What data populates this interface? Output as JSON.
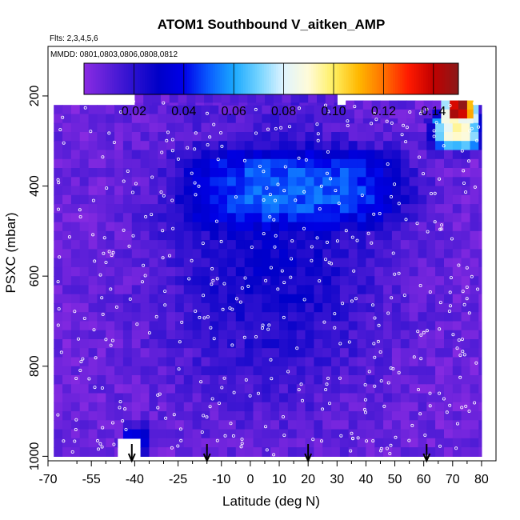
{
  "chart_data": {
    "type": "heatmap",
    "title": "ATOM1 Southbound V_aitken_AMP",
    "flights_note": "Flts: 2,3,4,5,6",
    "dates_note": "MMDD: 0801,0803,0806,0808,0812",
    "xlabel": "Latitude (deg N)",
    "ylabel": "PSXC (mbar)",
    "xlim": [
      -70,
      85
    ],
    "ylim": [
      1010,
      90
    ],
    "x_ticks": [
      "-70",
      "-55",
      "-40",
      "-25",
      "-10",
      "0",
      "10",
      "20",
      "30",
      "40",
      "50",
      "60",
      "70",
      "80"
    ],
    "x_tick_values": [
      -70,
      -55,
      -40,
      -25,
      -10,
      0,
      10,
      20,
      30,
      40,
      50,
      60,
      70,
      80
    ],
    "x_minor_ticks": [
      -60,
      -50,
      -45,
      -35,
      -30,
      -20,
      -15,
      -5,
      5,
      15,
      25,
      35,
      45,
      55,
      65,
      75
    ],
    "y_ticks": [
      "200",
      "400",
      "600",
      "800",
      "1000"
    ],
    "y_tick_values": [
      200,
      400,
      600,
      800,
      1000
    ],
    "colorbar": {
      "min": 0.0,
      "max": 0.15,
      "tick_labels": [
        "0.02",
        "0.04",
        "0.06",
        "0.08",
        "0.10",
        "0.12",
        "0.14"
      ],
      "tick_values": [
        0.02,
        0.04,
        0.06,
        0.08,
        0.1,
        0.12,
        0.14
      ],
      "colors": [
        "#8a2be2",
        "#5a1fd8",
        "#2a10cf",
        "#0000c8",
        "#0000e8",
        "#0a5cff",
        "#1aa8ff",
        "#73d3ff",
        "#e0f4ff",
        "#fffbd8",
        "#ffef60",
        "#ffb800",
        "#ff7000",
        "#ff1a00",
        "#c00000",
        "#8b1a1a"
      ]
    },
    "grid": false,
    "legend": "colorbar-top",
    "cell_size": {
      "lat_step_deg": 3,
      "pressure_step_mbar": 40
    },
    "columns": [
      {
        "lat_min": -68,
        "lat_max": 80,
        "p_top": 220,
        "p_bottom": 960
      },
      {
        "lat_min": -40,
        "lat_max": 30,
        "p_top": 175,
        "p_bottom": 220
      },
      {
        "lat_min": 33,
        "lat_max": 77,
        "p_top": 210,
        "p_bottom": 260
      },
      {
        "lat_min": 64,
        "lat_max": 80,
        "p_top": 260,
        "p_bottom": 360
      },
      {
        "lat_min": -68,
        "lat_max": -46,
        "p_top": 960,
        "p_bottom": 1000
      },
      {
        "lat_min": -38,
        "lat_max": 80,
        "p_top": 960,
        "p_bottom": 1000
      }
    ],
    "features": [
      {
        "name": "upper-tropospheric mid-latitude band",
        "lat": [
          -20,
          50
        ],
        "p": [
          330,
          480
        ],
        "value": 0.05
      },
      {
        "name": "northern high-latitude upper maximum",
        "lat": [
          69,
          76
        ],
        "p": [
          210,
          250
        ],
        "value": 0.145
      },
      {
        "name": "northern arctic upper band",
        "lat": [
          65,
          78
        ],
        "p": [
          250,
          310
        ],
        "value": 0.09
      },
      {
        "name": "southern surface anomaly",
        "lat": [
          -42,
          -37
        ],
        "p": [
          940,
          985
        ],
        "value": 0.04
      }
    ],
    "sample_markers": "white circles",
    "arrow_markers_lat": [
      -41,
      -15,
      20,
      61
    ]
  }
}
